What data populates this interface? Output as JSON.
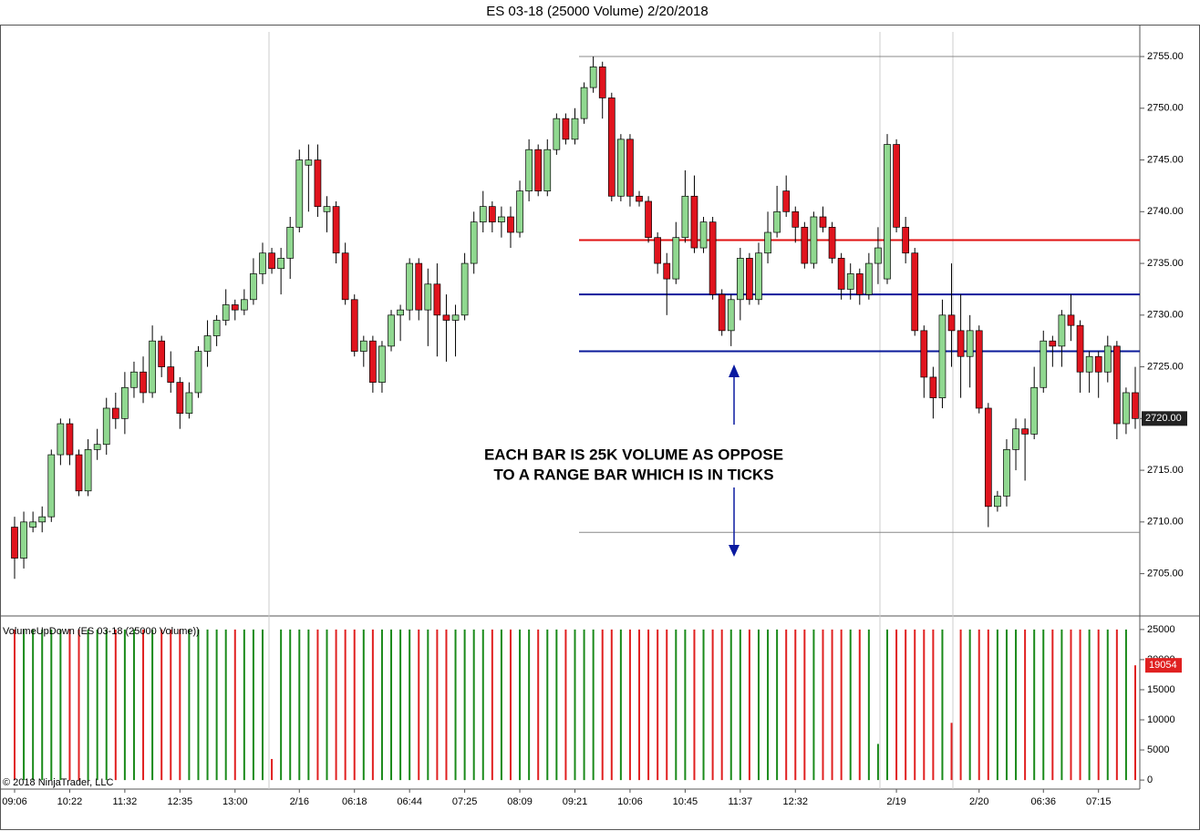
{
  "chart_data": {
    "type": "candlestick",
    "title": "ES 03-18 (25000 Volume)  2/20/2018",
    "annotation": [
      "EACH BAR IS 25K VOLUME AS OPPOSE",
      "TO A RANGE BAR WHICH IS IN TICKS"
    ],
    "indicator_title": "VolumeUpDown (ES 03-18 (25000 Volume))",
    "copyright": "© 2018 NinjaTrader, LLC",
    "up_color": "#90d890",
    "down_color": "#e0141e",
    "categories": [
      "09:06",
      null,
      null,
      null,
      null,
      null,
      "10:22",
      null,
      null,
      null,
      null,
      null,
      "11:32",
      null,
      null,
      null,
      null,
      null,
      "12:35",
      null,
      null,
      null,
      null,
      null,
      "13:00",
      null,
      null,
      null,
      null,
      null,
      null,
      "2/16",
      null,
      null,
      null,
      null,
      null,
      "06:18",
      null,
      null,
      null,
      null,
      null,
      "06:44",
      null,
      null,
      null,
      null,
      null,
      "07:25",
      null,
      null,
      null,
      null,
      null,
      "08:09",
      null,
      null,
      null,
      null,
      null,
      "09:21",
      null,
      null,
      null,
      null,
      null,
      "10:06",
      null,
      null,
      null,
      null,
      null,
      "10:45",
      null,
      null,
      null,
      null,
      null,
      "11:37",
      null,
      null,
      null,
      null,
      null,
      "12:32",
      null,
      null,
      null,
      null,
      null,
      null,
      null,
      null,
      null,
      null,
      "2/19",
      null,
      null,
      null,
      null,
      null,
      null,
      null,
      null,
      "2/20",
      null,
      null,
      null,
      null,
      null,
      null,
      "06:36",
      null,
      null,
      null,
      null,
      null,
      "07:15",
      null,
      null,
      null,
      null
    ],
    "open": [
      2709.5,
      2706.5,
      2709.5,
      2710,
      2710.5,
      2716.5,
      2719.5,
      2716.5,
      2713,
      2717,
      2717.5,
      2721,
      2720,
      2723,
      2724.5,
      2722.5,
      2727.5,
      2725,
      2723.5,
      2720.5,
      2722.5,
      2726.5,
      2728,
      2729.5,
      2731,
      2730.5,
      2731.5,
      2734,
      2736,
      2734.5,
      2735.5,
      2738.5,
      2744.5,
      2745,
      2740,
      2740.5,
      2736,
      2731.5,
      2726.5,
      2727.5,
      2723.5,
      2727,
      2730,
      2730.5,
      2735,
      2730.5,
      2733,
      2730,
      2729.5,
      2730,
      2735,
      2739,
      2740.5,
      2739,
      2739.5,
      2738,
      2742,
      2746,
      2742,
      2746,
      2749,
      2747,
      2749,
      2752,
      2754,
      2751,
      2741.5,
      2747,
      2741.5,
      2741,
      2737.5,
      2735,
      2733.5,
      2737.5,
      2741.5,
      2736.5,
      2739,
      2732,
      2728.5,
      2731.5,
      2735.5,
      2731.5,
      2736,
      2738,
      2742,
      2740,
      2738.5,
      2735,
      2739.5,
      2738.5,
      2735.5,
      2732.5,
      2734,
      2732,
      2735,
      2733.5,
      2746.5,
      2738.5,
      2736,
      2728.5,
      2724,
      2722,
      2730,
      2728.5,
      2726,
      2728.5,
      2721,
      2711.5,
      2712.5,
      2717,
      2719,
      2718.5,
      2723,
      2727.5,
      2727,
      2730,
      2729,
      2724.5,
      2726,
      2724.5,
      2727,
      2719.5,
      2722.5
    ],
    "high": [
      2710.5,
      2711,
      2711,
      2711.5,
      2717,
      2720,
      2720,
      2717,
      2718,
      2719,
      2722,
      2722.5,
      2724.5,
      2725.5,
      2726,
      2729,
      2728,
      2726.5,
      2724,
      2723.5,
      2727,
      2729.5,
      2730,
      2732.5,
      2731.5,
      2732.5,
      2735.5,
      2737,
      2736.5,
      2736.5,
      2739.5,
      2746,
      2746.5,
      2746.5,
      2741.5,
      2741,
      2737,
      2732,
      2728,
      2728,
      2727.5,
      2730.5,
      2731,
      2735.5,
      2735.5,
      2734.5,
      2735,
      2732,
      2731,
      2736,
      2740,
      2742,
      2741,
      2740.5,
      2740.5,
      2743,
      2747,
      2746.5,
      2747,
      2749.5,
      2749.5,
      2750,
      2752.5,
      2755,
      2754.5,
      2751.5,
      2747.5,
      2747.5,
      2742,
      2741.5,
      2738,
      2736,
      2739,
      2744,
      2743.5,
      2739.5,
      2739.5,
      2732.5,
      2732,
      2736.5,
      2736,
      2737,
      2740,
      2742.5,
      2743.5,
      2740.5,
      2739,
      2740,
      2740.5,
      2739,
      2736,
      2735,
      2734.5,
      2736,
      2738.5,
      2747.5,
      2747,
      2739.5,
      2736.5,
      2729,
      2725,
      2731.5,
      2735,
      2732,
      2730,
      2729,
      2721.5,
      2713,
      2718,
      2720,
      2720,
      2725,
      2728.5,
      2728,
      2730.5,
      2732,
      2729.5,
      2726.5,
      2726.5,
      2728,
      2727.5,
      2723,
      2725
    ],
    "low": [
      2704.5,
      2705.5,
      2709,
      2709,
      2710,
      2715.5,
      2715.5,
      2712.5,
      2712.5,
      2716,
      2716.5,
      2719,
      2718.5,
      2722,
      2721.5,
      2722,
      2724,
      2722.5,
      2719,
      2720,
      2722,
      2725,
      2727,
      2729,
      2729.5,
      2730,
      2731,
      2733,
      2734,
      2732,
      2733.5,
      2738,
      2740,
      2739.5,
      2738,
      2735,
      2731,
      2726,
      2725,
      2722.5,
      2722.5,
      2726.5,
      2727.5,
      2729.5,
      2729.5,
      2727,
      2726,
      2725.5,
      2726,
      2729.5,
      2734,
      2738,
      2738,
      2737.5,
      2736.5,
      2737.5,
      2741,
      2741.5,
      2741.5,
      2745.5,
      2746.5,
      2746.5,
      2748.5,
      2751.5,
      2749,
      2741,
      2741,
      2740.5,
      2740.5,
      2737,
      2734,
      2730,
      2733,
      2737,
      2736,
      2736,
      2731.5,
      2728,
      2727,
      2729.5,
      2731,
      2731,
      2735,
      2737.5,
      2739.5,
      2737,
      2734.5,
      2734.5,
      2738,
      2735,
      2731.5,
      2731.5,
      2731,
      2731.5,
      2733,
      2733,
      2738,
      2735,
      2728,
      2722,
      2720,
      2721,
      2725,
      2722,
      2723,
      2720.5,
      2709.5,
      2711,
      2711.5,
      2715,
      2714,
      2718,
      2722.5,
      2725,
      2725,
      2727.5,
      2722.5,
      2722.5,
      2722,
      2723.5,
      2718,
      2718.5,
      2719
    ],
    "close": [
      2706.5,
      2710,
      2710,
      2710.5,
      2716.5,
      2719.5,
      2716.5,
      2713,
      2717,
      2717.5,
      2721,
      2720,
      2723,
      2724.5,
      2722.5,
      2727.5,
      2725,
      2723.5,
      2720.5,
      2722.5,
      2726.5,
      2728,
      2729.5,
      2731,
      2730.5,
      2731.5,
      2734,
      2736,
      2734.5,
      2735.5,
      2738.5,
      2745,
      2745,
      2740.5,
      2740.5,
      2736,
      2731.5,
      2726.5,
      2727.5,
      2723.5,
      2727,
      2730,
      2730.5,
      2735,
      2730.5,
      2733,
      2730,
      2729.5,
      2730,
      2735,
      2739,
      2740.5,
      2739,
      2739.5,
      2738,
      2742,
      2746,
      2742,
      2746,
      2749,
      2747,
      2749,
      2752,
      2754,
      2751,
      2741.5,
      2747,
      2741.5,
      2741,
      2737.5,
      2735,
      2733.5,
      2737.5,
      2741.5,
      2736.5,
      2739,
      2732,
      2728.5,
      2731.5,
      2735.5,
      2731.5,
      2736,
      2738,
      2740,
      2740,
      2738.5,
      2735,
      2739.5,
      2738.5,
      2735.5,
      2732.5,
      2734,
      2732,
      2735,
      2736.5,
      2746.5,
      2738.5,
      2736,
      2728.5,
      2724,
      2722,
      2730,
      2728.5,
      2726,
      2728.5,
      2721,
      2711.5,
      2712.5,
      2717,
      2719,
      2718.5,
      2723,
      2727.5,
      2727,
      2730,
      2729,
      2724.5,
      2726,
      2724.5,
      2727,
      2719.5,
      2722.5,
      2720
    ],
    "last_price_label": "2720.00",
    "volumes": [
      25000,
      25000,
      25000,
      25000,
      25000,
      25000,
      25000,
      25000,
      25000,
      25000,
      25000,
      25000,
      25000,
      25000,
      25000,
      25000,
      25000,
      25000,
      25000,
      25000,
      25000,
      25000,
      25000,
      25000,
      25000,
      25000,
      25000,
      25000,
      3500,
      25000,
      25000,
      25000,
      25000,
      25000,
      25000,
      25000,
      25000,
      25000,
      25000,
      25000,
      25000,
      25000,
      25000,
      25000,
      25000,
      25000,
      25000,
      25000,
      25000,
      25000,
      25000,
      25000,
      25000,
      25000,
      25000,
      25000,
      25000,
      25000,
      25000,
      25000,
      25000,
      25000,
      25000,
      25000,
      25000,
      25000,
      25000,
      25000,
      25000,
      25000,
      25000,
      25000,
      25000,
      25000,
      25000,
      25000,
      25000,
      25000,
      25000,
      25000,
      25000,
      25000,
      25000,
      25000,
      25000,
      25000,
      25000,
      25000,
      25000,
      25000,
      25000,
      25000,
      25000,
      25000,
      6000,
      25000,
      25000,
      25000,
      25000,
      25000,
      25000,
      25000,
      9500,
      25000,
      25000,
      25000,
      25000,
      25000,
      25000,
      25000,
      25000,
      25000,
      25000,
      25000,
      25000,
      25000,
      25000,
      25000,
      25000,
      25000,
      25000,
      25000,
      19054
    ],
    "volume_up_color": "#1a8a1a",
    "volume_down_color": "#e02020",
    "ylim": [
      2701,
      2758
    ],
    "yticks": [
      {
        "value": 2705,
        "label": "2705.00"
      },
      {
        "value": 2710,
        "label": "2710.00"
      },
      {
        "value": 2715,
        "label": "2715.00"
      },
      {
        "value": 2720,
        "label": "2720.00"
      },
      {
        "value": 2725,
        "label": "2725.00"
      },
      {
        "value": 2730,
        "label": "2730.00"
      },
      {
        "value": 2735,
        "label": "2735.00"
      },
      {
        "value": 2740,
        "label": "2740.00"
      },
      {
        "value": 2745,
        "label": "2745.00"
      },
      {
        "value": 2750,
        "label": "2750.00"
      },
      {
        "value": 2755,
        "label": "2755.00"
      }
    ],
    "volume_ylim": [
      -1500,
      27100
    ],
    "volume_yticks": [
      0,
      5000,
      10000,
      15000,
      20000,
      25000
    ],
    "hlines": [
      {
        "value": 2755,
        "color": "#888888"
      },
      {
        "value": 2709,
        "color": "#888888"
      },
      {
        "value": 2737.25,
        "color": "#e01010"
      },
      {
        "value": 2732,
        "color": "#0a1a9a"
      },
      {
        "value": 2726.5,
        "color": "#0a1a9a"
      }
    ]
  }
}
